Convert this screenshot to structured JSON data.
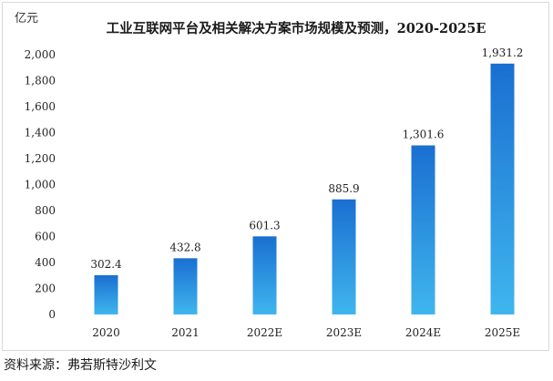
{
  "chart_data": {
    "type": "bar",
    "title": "工业互联网平台及相关解决方案市场规模及预测，2020-2025E",
    "ylabel": "亿元",
    "xlabel": "",
    "categories": [
      "2020",
      "2021",
      "2022E",
      "2023E",
      "2024E",
      "2025E"
    ],
    "values": [
      302.4,
      432.8,
      601.3,
      885.9,
      1301.6,
      1931.2
    ],
    "value_labels": [
      "302.4",
      "432.8",
      "601.3",
      "885.9",
      "1,301.6",
      "1,931.2"
    ],
    "ylim": [
      0,
      2000
    ],
    "yticks": [
      0,
      200,
      400,
      600,
      800,
      1000,
      1200,
      1400,
      1600,
      1800,
      2000
    ],
    "ytick_labels": [
      "0",
      "200",
      "400",
      "600",
      "800",
      "1,000",
      "1,200",
      "1,400",
      "1,600",
      "1,800",
      "2,000"
    ],
    "grid": false,
    "legend": "none",
    "bar_colors": {
      "top": "#1a6fd1",
      "bottom": "#3fb6ee"
    }
  },
  "source": "资料来源：弗若斯特沙利文"
}
